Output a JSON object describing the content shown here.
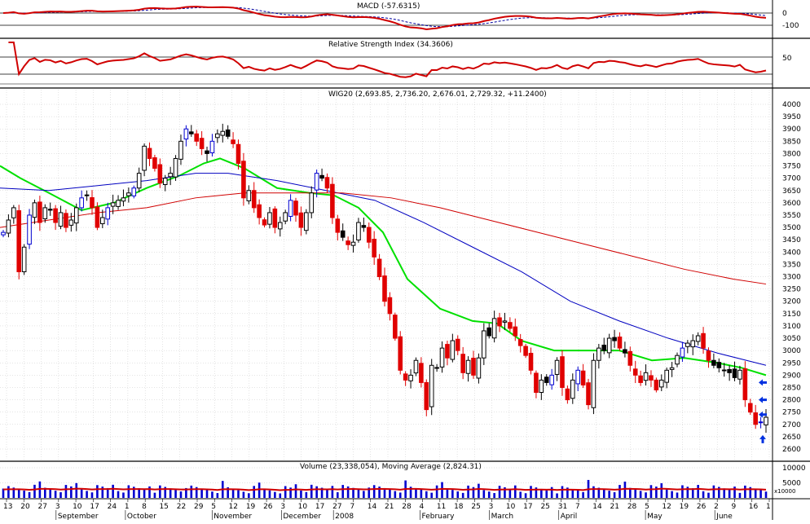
{
  "panels": {
    "macd": {
      "label": "MACD (-57.6315)",
      "ticks": [
        "0",
        "-100"
      ]
    },
    "rsi": {
      "label": "Relative Strength Index (34.3606)",
      "ticks": [
        "50"
      ]
    },
    "price": {
      "label": "WIG20 (2,693.85, 2,736.20, 2,676.01, 2,729.32, +11.2400)"
    },
    "volume": {
      "label": "Volume (23,338,054), Moving Average (2,824.31)",
      "ticks": [
        "10000",
        "5000"
      ],
      "multiplier": "x10000"
    }
  },
  "xaxis": {
    "day_ticks": [
      "13",
      "20",
      "27",
      "3",
      "10",
      "17",
      "24",
      "1",
      "8",
      "15",
      "22",
      "29",
      "5",
      "12",
      "19",
      "26",
      "3",
      "10",
      "17",
      "27",
      "7",
      "14",
      "21",
      "28",
      "4",
      "11",
      "18",
      "25",
      "3",
      "10",
      "17",
      "25",
      "31",
      "7",
      "14",
      "21",
      "28",
      "5",
      "12",
      "19",
      "26",
      "2",
      "9",
      "16",
      "1"
    ],
    "month_labels": [
      "September",
      "October",
      "November",
      "December",
      "2008",
      "February",
      "March",
      "April",
      "May",
      "June"
    ]
  },
  "chart_data": {
    "type": "candlestick",
    "title": "WIG20",
    "ohlc_last": {
      "open": 2693.85,
      "high": 2736.2,
      "low": 2676.01,
      "close": 2729.32,
      "change": 11.24
    },
    "ylim": [
      2600,
      4000
    ],
    "yticks": [
      2600,
      2650,
      2700,
      2750,
      2800,
      2850,
      2900,
      2950,
      3000,
      3050,
      3100,
      3150,
      3200,
      3250,
      3300,
      3350,
      3400,
      3450,
      3500,
      3550,
      3600,
      3650,
      3700,
      3750,
      3800,
      3850,
      3900,
      3950,
      4000
    ],
    "close_series": [
      3480,
      3530,
      3580,
      3320,
      3420,
      3550,
      3600,
      3520,
      3580,
      3570,
      3520,
      3560,
      3500,
      3530,
      3580,
      3620,
      3630,
      3580,
      3500,
      3540,
      3580,
      3600,
      3610,
      3620,
      3640,
      3660,
      3720,
      3830,
      3780,
      3740,
      3680,
      3700,
      3720,
      3780,
      3850,
      3900,
      3880,
      3850,
      3820,
      3800,
      3850,
      3880,
      3890,
      3870,
      3840,
      3760,
      3620,
      3650,
      3580,
      3540,
      3510,
      3560,
      3500,
      3520,
      3560,
      3610,
      3550,
      3500,
      3560,
      3640,
      3720,
      3700,
      3660,
      3540,
      3480,
      3460,
      3430,
      3440,
      3520,
      3500,
      3440,
      3380,
      3300,
      3200,
      3150,
      3050,
      2920,
      2880,
      2900,
      2960,
      2870,
      2760,
      2940,
      2930,
      3010,
      2970,
      3040,
      3000,
      2910,
      2960,
      2900,
      2970,
      3080,
      3060,
      3130,
      3100,
      3120,
      3090,
      3060,
      3020,
      2980,
      2920,
      2830,
      2880,
      2870,
      2900,
      2960,
      2850,
      2800,
      2880,
      2920,
      2860,
      2780,
      2960,
      3010,
      3000,
      3050,
      3040,
      3010,
      2990,
      2940,
      2900,
      2870,
      2910,
      2880,
      2840,
      2880,
      2920,
      2930,
      2980,
      3010,
      3030,
      3040,
      3060,
      3010,
      2960,
      2940,
      2930,
      2920,
      2910,
      2890,
      2920,
      2800,
      2750,
      2700,
      2710,
      2729
    ],
    "series": [
      {
        "name": "MA15",
        "color": "#00e000",
        "points": [
          [
            0,
            3750
          ],
          [
            25,
            3700
          ],
          [
            60,
            3640
          ],
          [
            100,
            3570
          ],
          [
            140,
            3600
          ],
          [
            180,
            3660
          ],
          [
            220,
            3710
          ],
          [
            250,
            3760
          ],
          [
            270,
            3780
          ],
          [
            300,
            3740
          ],
          [
            340,
            3660
          ],
          [
            380,
            3640
          ],
          [
            410,
            3630
          ],
          [
            440,
            3580
          ],
          [
            470,
            3480
          ],
          [
            500,
            3290
          ],
          [
            540,
            3170
          ],
          [
            580,
            3120
          ],
          [
            610,
            3110
          ],
          [
            640,
            3040
          ],
          [
            680,
            3000
          ],
          [
            720,
            3000
          ],
          [
            760,
            3000
          ],
          [
            800,
            2960
          ],
          [
            840,
            2970
          ],
          [
            880,
            2950
          ],
          [
            910,
            2930
          ],
          [
            940,
            2900
          ]
        ]
      },
      {
        "name": "MA50",
        "color": "#0000c0",
        "points": [
          [
            0,
            3660
          ],
          [
            60,
            3650
          ],
          [
            120,
            3670
          ],
          [
            180,
            3690
          ],
          [
            240,
            3720
          ],
          [
            280,
            3720
          ],
          [
            340,
            3690
          ],
          [
            400,
            3650
          ],
          [
            460,
            3610
          ],
          [
            520,
            3520
          ],
          [
            580,
            3420
          ],
          [
            640,
            3320
          ],
          [
            700,
            3200
          ],
          [
            760,
            3120
          ],
          [
            820,
            3050
          ],
          [
            880,
            2990
          ],
          [
            940,
            2940
          ]
        ]
      },
      {
        "name": "MA200",
        "color": "#d00000",
        "points": [
          [
            0,
            3500
          ],
          [
            60,
            3530
          ],
          [
            120,
            3560
          ],
          [
            180,
            3580
          ],
          [
            240,
            3620
          ],
          [
            300,
            3640
          ],
          [
            360,
            3640
          ],
          [
            420,
            3640
          ],
          [
            480,
            3620
          ],
          [
            540,
            3580
          ],
          [
            600,
            3530
          ],
          [
            660,
            3480
          ],
          [
            720,
            3430
          ],
          [
            780,
            3380
          ],
          [
            840,
            3330
          ],
          [
            900,
            3290
          ],
          [
            940,
            3270
          ]
        ]
      }
    ],
    "markers": [
      {
        "type": "arrow-left",
        "value": 2870
      },
      {
        "type": "arrow-left",
        "value": 2800
      },
      {
        "type": "arrow-left",
        "value": 2740
      },
      {
        "type": "arrow-up",
        "value": 2640
      }
    ],
    "volume": {
      "ylim": [
        0,
        10000
      ],
      "ticks": [
        10000,
        5000
      ],
      "moving_average_last": 2824.31,
      "last_volume": 23338054
    }
  }
}
